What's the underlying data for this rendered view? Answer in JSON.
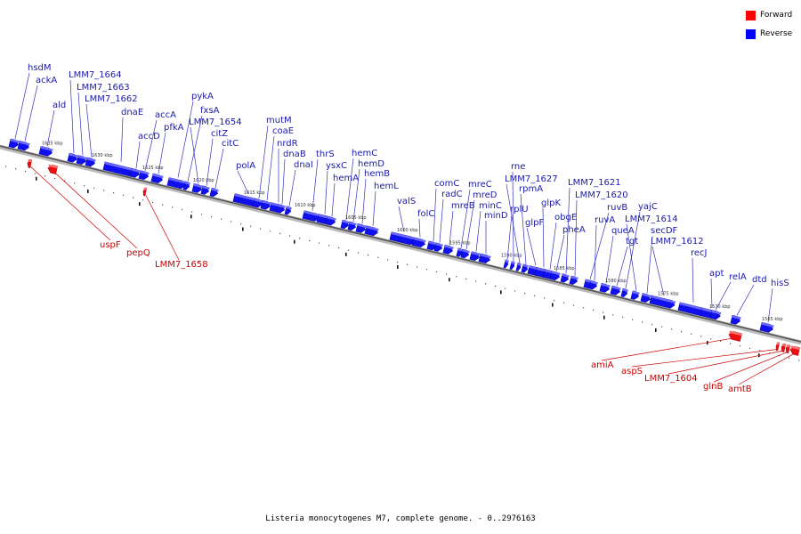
{
  "caption": "Listeria monocytogenes M7, complete genome. - 0..2976163",
  "legend": {
    "forward_label": "Forward",
    "reverse_label": "Reverse",
    "forward_color": "#ff0000",
    "reverse_color": "#0000ff"
  },
  "colors": {
    "forward_text": "#cc0000",
    "reverse_text": "#1a1aaa",
    "forward_line": "#cc0000",
    "reverse_line": "#3333bb",
    "backbone": "#888888"
  },
  "kbp_ticks": [
    "1635 kbp",
    "1630 kbp",
    "1625 kbp",
    "1620 kbp",
    "1615 kbp",
    "1610 kbp",
    "1605 kbp",
    "1600 kbp",
    "1595 kbp",
    "1590 kbp",
    "1585 kbp",
    "1580 kbp",
    "1575 kbp",
    "1570 kbp",
    "1565 kbp"
  ],
  "reverse_genes": [
    "hsdM",
    "ackA",
    "ald",
    "LMM7_1664",
    "LMM7_1663",
    "LMM7_1662",
    "dnaE",
    "accD",
    "accA",
    "pfkA",
    "pykA",
    "fxsA",
    "LMM7_1654",
    "citZ",
    "citC",
    "polA",
    "mutM",
    "coaE",
    "nrdR",
    "dnaB",
    "dnaI",
    "thrS",
    "ysxC",
    "hemA",
    "hemC",
    "hemD",
    "hemB",
    "hemL",
    "valS",
    "folC",
    "comC",
    "radC",
    "mreB",
    "mreC",
    "mreD",
    "minC",
    "minD",
    "rplU",
    "rne",
    "LMM7_1627",
    "rpmA",
    "glpF",
    "glpK",
    "obgE",
    "pheA",
    "LMM7_1621",
    "LMM7_1620",
    "ruvB",
    "ruvA",
    "queA",
    "tgt",
    "yajC",
    "LMM7_1614",
    "secDF",
    "LMM7_1612",
    "recJ",
    "apt",
    "relA",
    "dtd",
    "hisS"
  ],
  "forward_genes": [
    "uspF",
    "pepQ",
    "LMM7_1658",
    "amiA",
    "aspS",
    "LMM7_1604",
    "glnB",
    "amtB"
  ]
}
